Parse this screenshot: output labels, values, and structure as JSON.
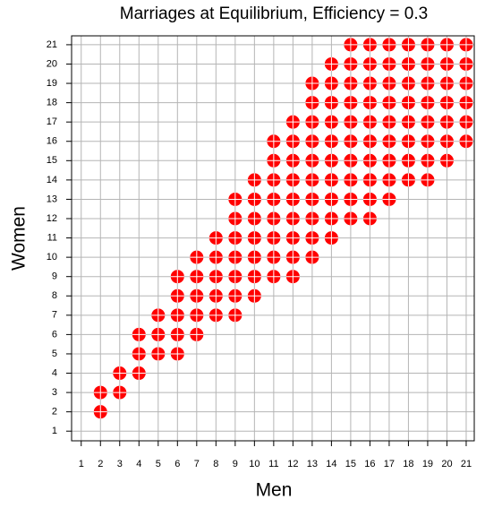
{
  "chart_data": {
    "type": "scatter",
    "title": "Marriages at Equilibrium, Efficiency = 0.3",
    "x_label": "Men",
    "y_label": "Women",
    "color": "#ff0000",
    "grid": true,
    "xlim": [
      0.5,
      21.42
    ],
    "ylim": [
      0.5,
      21.46
    ],
    "xticks": [
      1,
      2,
      3,
      4,
      5,
      6,
      7,
      8,
      9,
      10,
      11,
      12,
      13,
      14,
      15,
      16,
      17,
      18,
      19,
      20,
      21
    ],
    "yticks": [
      1,
      2,
      3,
      4,
      5,
      6,
      7,
      8,
      9,
      10,
      11,
      12,
      13,
      14,
      15,
      16,
      17,
      18,
      19,
      20,
      21
    ],
    "x": [
      2,
      2,
      3,
      3,
      4,
      4,
      5,
      6,
      4,
      5,
      6,
      7,
      5,
      6,
      7,
      8,
      9,
      6,
      7,
      8,
      9,
      10,
      6,
      7,
      8,
      9,
      10,
      11,
      12,
      7,
      8,
      9,
      10,
      11,
      12,
      13,
      8,
      9,
      10,
      11,
      12,
      13,
      14,
      9,
      10,
      11,
      12,
      13,
      14,
      15,
      16,
      9,
      10,
      11,
      12,
      13,
      14,
      15,
      16,
      17,
      10,
      11,
      12,
      13,
      14,
      15,
      16,
      17,
      18,
      19,
      11,
      12,
      13,
      14,
      15,
      16,
      17,
      18,
      19,
      20,
      11,
      12,
      13,
      14,
      15,
      16,
      17,
      18,
      19,
      20,
      21,
      12,
      13,
      14,
      15,
      16,
      17,
      18,
      19,
      20,
      21,
      13,
      14,
      15,
      16,
      17,
      18,
      19,
      20,
      21,
      13,
      14,
      15,
      16,
      17,
      18,
      19,
      20,
      21,
      14,
      15,
      16,
      17,
      18,
      19,
      20,
      21,
      15,
      16,
      17,
      18,
      19,
      20,
      21
    ],
    "y": [
      2,
      3,
      3,
      4,
      4,
      5,
      5,
      5,
      6,
      6,
      6,
      6,
      7,
      7,
      7,
      7,
      7,
      8,
      8,
      8,
      8,
      8,
      9,
      9,
      9,
      9,
      9,
      9,
      9,
      10,
      10,
      10,
      10,
      10,
      10,
      10,
      11,
      11,
      11,
      11,
      11,
      11,
      11,
      12,
      12,
      12,
      12,
      12,
      12,
      12,
      12,
      13,
      13,
      13,
      13,
      13,
      13,
      13,
      13,
      13,
      14,
      14,
      14,
      14,
      14,
      14,
      14,
      14,
      14,
      14,
      15,
      15,
      15,
      15,
      15,
      15,
      15,
      15,
      15,
      15,
      16,
      16,
      16,
      16,
      16,
      16,
      16,
      16,
      16,
      16,
      16,
      17,
      17,
      17,
      17,
      17,
      17,
      17,
      17,
      17,
      17,
      18,
      18,
      18,
      18,
      18,
      18,
      18,
      18,
      18,
      19,
      19,
      19,
      19,
      19,
      19,
      19,
      19,
      19,
      20,
      20,
      20,
      20,
      20,
      20,
      20,
      20,
      21,
      21,
      21,
      21,
      21,
      21,
      21
    ]
  }
}
